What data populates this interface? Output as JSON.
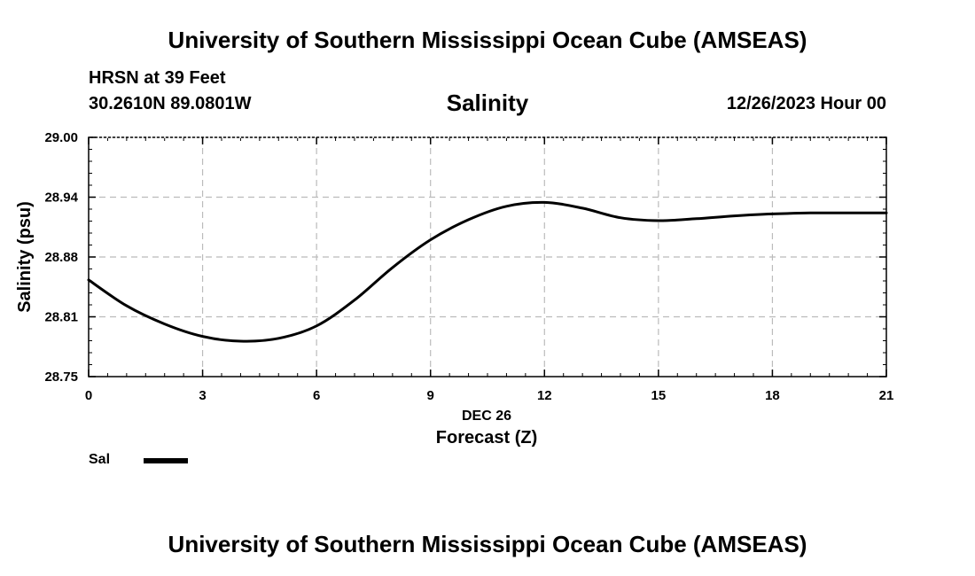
{
  "header": {
    "main_title": "University of Southern Mississippi Ocean Cube (AMSEAS)",
    "station_name": "HRSN at 39 Feet",
    "station_coords": "30.2610N  89.0801W",
    "run_time": "12/26/2023 Hour 00"
  },
  "footer": {
    "title": "University of Southern Mississippi Ocean Cube (AMSEAS)"
  },
  "legend": {
    "label": "Sal",
    "color": "#000000"
  },
  "chart_data": {
    "type": "line",
    "title": "Salinity",
    "xlabel": "Forecast (Z)",
    "xlabel_date": "DEC 26",
    "ylabel": "Salinity (psu)",
    "xlim": [
      0,
      21
    ],
    "ylim": [
      28.75,
      29.0
    ],
    "x_ticks": [
      0,
      3,
      6,
      9,
      12,
      15,
      18,
      21
    ],
    "x_tick_labels": [
      "0",
      "3",
      "6",
      "9",
      "12",
      "15",
      "18",
      "21"
    ],
    "y_ticks": [
      28.75,
      28.8125,
      28.875,
      28.9375,
      29.0
    ],
    "y_tick_labels": [
      "28.75",
      "28.81",
      "28.88",
      "28.94",
      "29.00"
    ],
    "grid": true,
    "series": [
      {
        "name": "Sal",
        "color": "#000000",
        "x": [
          0,
          1,
          2,
          3,
          4,
          5,
          6,
          7,
          8,
          9,
          10,
          11,
          12,
          13,
          14,
          15,
          16,
          17,
          18,
          19,
          20,
          21
        ],
        "values": [
          28.851,
          28.824,
          28.805,
          28.792,
          28.787,
          28.79,
          28.803,
          28.83,
          28.864,
          28.893,
          28.914,
          28.928,
          28.932,
          28.926,
          28.916,
          28.913,
          28.915,
          28.918,
          28.92,
          28.921,
          28.921,
          28.921
        ]
      }
    ]
  }
}
